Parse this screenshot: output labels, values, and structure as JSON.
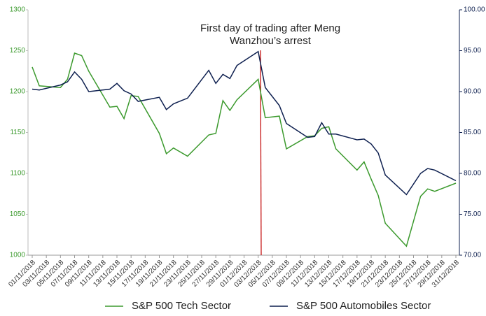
{
  "chart_data": {
    "type": "line",
    "annotation": [
      "First day of trading after  Meng",
      "Wanzhou’s arrest"
    ],
    "x": [
      "01/11/2018",
      "02/11/2018",
      "05/11/2018",
      "06/11/2018",
      "07/11/2018",
      "08/11/2018",
      "09/11/2018",
      "12/11/2018",
      "13/11/2018",
      "14/11/2018",
      "15/11/2018",
      "16/11/2018",
      "19/11/2018",
      "20/11/2018",
      "21/11/2018",
      "23/11/2018",
      "26/11/2018",
      "27/11/2018",
      "28/11/2018",
      "29/11/2018",
      "30/11/2018",
      "03/12/2018",
      "04/12/2018",
      "06/12/2018",
      "07/12/2018",
      "10/12/2018",
      "11/12/2018",
      "12/12/2018",
      "13/12/2018",
      "14/12/2018",
      "17/12/2018",
      "18/12/2018",
      "19/12/2018",
      "20/12/2018",
      "21/12/2018",
      "24/12/2018",
      "26/12/2018",
      "27/12/2018",
      "28/12/2018",
      "31/12/2018"
    ],
    "series": [
      {
        "name": "S&P 500 Tech Sector",
        "color": "#3c9a2e",
        "values": [
          1230,
          1207,
          1205,
          1215,
          1247,
          1244,
          1225,
          1181,
          1182,
          1167,
          1195,
          1194,
          1149,
          1124,
          1131,
          1121,
          1147,
          1149,
          1189,
          1177,
          1190,
          1215,
          1168,
          1170,
          1130,
          1145,
          1146,
          1155,
          1157,
          1130,
          1104,
          1114,
          1093,
          1073,
          1039,
          1011,
          1072,
          1081,
          1078,
          1088
        ]
      },
      {
        "name": "S&P 500 Automobiles Sector",
        "color": "#0d1f4f",
        "axis": "y2",
        "values": [
          90.3,
          90.2,
          90.8,
          91.2,
          92.4,
          91.5,
          90.0,
          90.3,
          91.0,
          90.1,
          89.7,
          88.8,
          89.3,
          87.8,
          88.5,
          89.2,
          92.6,
          91.0,
          92.1,
          91.6,
          93.2,
          94.9,
          90.5,
          88.3,
          86.1,
          84.4,
          84.5,
          86.2,
          84.8,
          84.8,
          84.1,
          84.2,
          83.6,
          82.5,
          79.8,
          77.4,
          80.0,
          80.6,
          80.4,
          79.1
        ]
      }
    ],
    "xticks": [
      "01/11/2018",
      "03/11/2018",
      "05/11/2018",
      "07/11/2018",
      "09/11/2018",
      "11/11/2018",
      "13/11/2018",
      "15/11/2018",
      "17/11/2018",
      "19/11/2018",
      "21/11/2018",
      "23/11/2018",
      "25/11/2018",
      "27/11/2018",
      "29/11/2018",
      "01/12/2018",
      "03/12/2018",
      "05/12/2018",
      "07/12/2018",
      "09/12/2018",
      "11/12/2018",
      "13/12/2018",
      "15/12/2018",
      "17/12/2018",
      "19/12/2018",
      "21/12/2018",
      "23/12/2018",
      "25/12/2018",
      "27/12/2018",
      "29/12/2018",
      "31/12/2018"
    ],
    "ylim": [
      1000,
      1300
    ],
    "yticks": [
      1000,
      1050,
      1100,
      1150,
      1200,
      1250,
      1300
    ],
    "y2lim": [
      70,
      100
    ],
    "y2ticks": [
      {
        "value": 70,
        "label": "70.00"
      },
      {
        "value": 75,
        "label": "75.00"
      },
      {
        "value": 80,
        "label": "80.00"
      },
      {
        "value": 85,
        "label": "85.00"
      },
      {
        "value": 90,
        "label": "90.00"
      },
      {
        "value": 95,
        "label": "95.00"
      },
      {
        "value": 100,
        "label": "100.00"
      }
    ],
    "legend": "bottom"
  }
}
